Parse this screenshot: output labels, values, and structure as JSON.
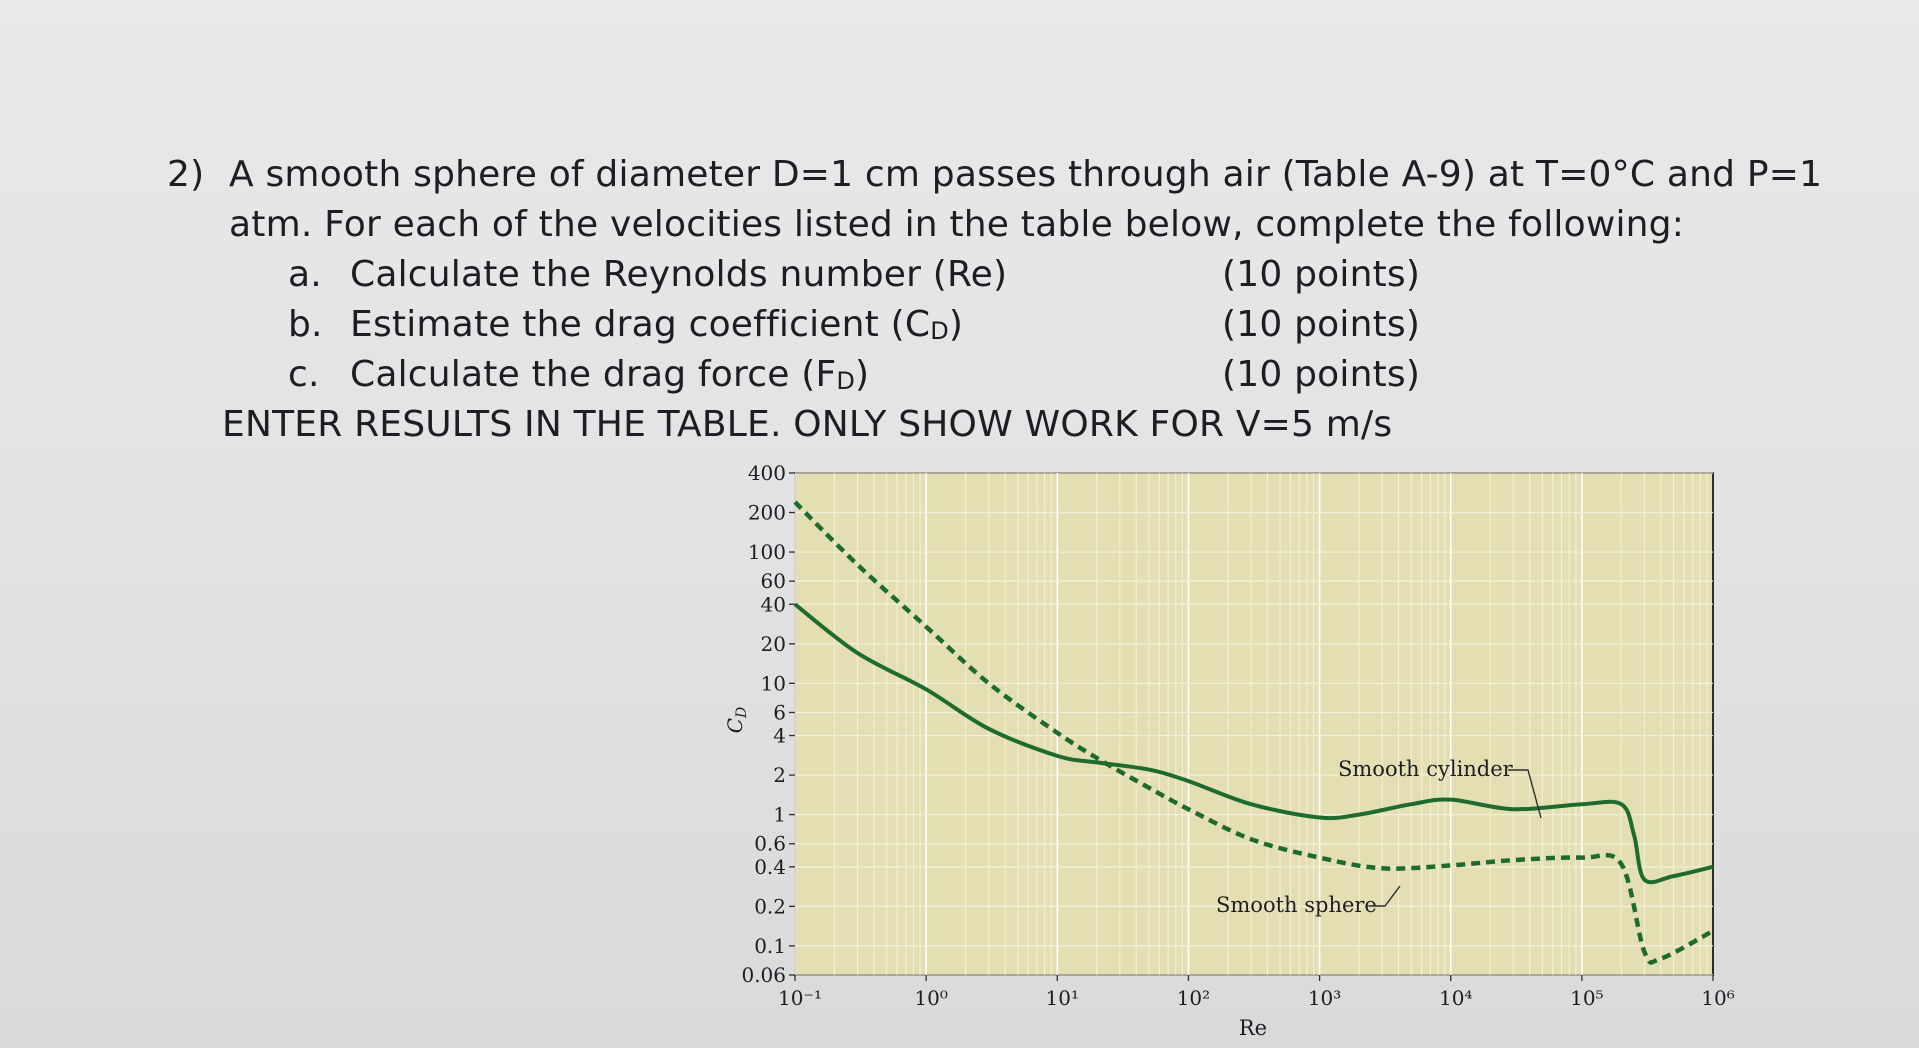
{
  "problem": {
    "number": "2)",
    "line1": "A smooth sphere of diameter D=1 cm passes through air (Table A-9) at T=0°C and P=1",
    "line2": "atm. For each of the velocities listed in the table below, complete the following:",
    "tasks": [
      {
        "letter": "a.",
        "text": "Calculate the Reynolds number (Re)",
        "points": "(10 points)"
      },
      {
        "letter": "b.",
        "text": "Estimate the drag coefficient (C",
        "sub": "D",
        "tail": ")",
        "points": "(10 points)"
      },
      {
        "letter": "c.",
        "text": "Calculate the drag force (F",
        "sub": "D",
        "tail": ")",
        "points": "(10 points)"
      }
    ],
    "instruction": "ENTER RESULTS IN THE TABLE. ONLY SHOW WORK FOR V=5 m/s"
  },
  "chart_data": {
    "type": "line",
    "xlabel": "Re",
    "ylabel": "C_D",
    "xscale": "log",
    "yscale": "log",
    "xlim": [
      0.1,
      1000000
    ],
    "ylim": [
      0.06,
      400
    ],
    "x_tick_labels": [
      "10⁻¹",
      "10⁰",
      "10¹",
      "10²",
      "10³",
      "10⁴",
      "10⁵",
      "10⁶"
    ],
    "x_tick_values": [
      0.1,
      1,
      10,
      100,
      1000,
      10000,
      100000,
      1000000
    ],
    "y_tick_labels": [
      "400",
      "200",
      "100",
      "60",
      "40",
      "20",
      "10",
      "6",
      "4",
      "2",
      "1",
      "0.6",
      "0.4",
      "0.2",
      "0.1",
      "0.06"
    ],
    "y_tick_values": [
      400,
      200,
      100,
      60,
      40,
      20,
      10,
      6,
      4,
      2,
      1,
      0.6,
      0.4,
      0.2,
      0.1,
      0.06
    ],
    "grid": true,
    "series": [
      {
        "name": "Smooth cylinder",
        "style": "solid",
        "color": "#1f6b2e",
        "x": [
          0.1,
          0.3,
          1,
          3,
          10,
          20,
          50,
          100,
          300,
          1000,
          2000,
          5000,
          10000,
          30000,
          100000,
          200000,
          250000,
          300000,
          500000,
          1000000
        ],
        "y": [
          40,
          17,
          9,
          4.5,
          2.8,
          2.5,
          2.2,
          1.8,
          1.2,
          0.95,
          1.0,
          1.2,
          1.3,
          1.1,
          1.2,
          1.2,
          0.7,
          0.32,
          0.34,
          0.4
        ]
      },
      {
        "name": "Smooth sphere",
        "style": "dashed",
        "color": "#1f6b2e",
        "x": [
          0.1,
          0.3,
          1,
          3,
          10,
          20,
          50,
          100,
          300,
          1000,
          3000,
          10000,
          30000,
          100000,
          200000,
          300000,
          400000,
          1000000
        ],
        "y": [
          240,
          80,
          27,
          10,
          4.2,
          2.7,
          1.6,
          1.1,
          0.65,
          0.47,
          0.39,
          0.41,
          0.45,
          0.47,
          0.42,
          0.09,
          0.08,
          0.13
        ]
      }
    ],
    "annotations": [
      "Smooth cylinder",
      "Smooth sphere"
    ]
  }
}
